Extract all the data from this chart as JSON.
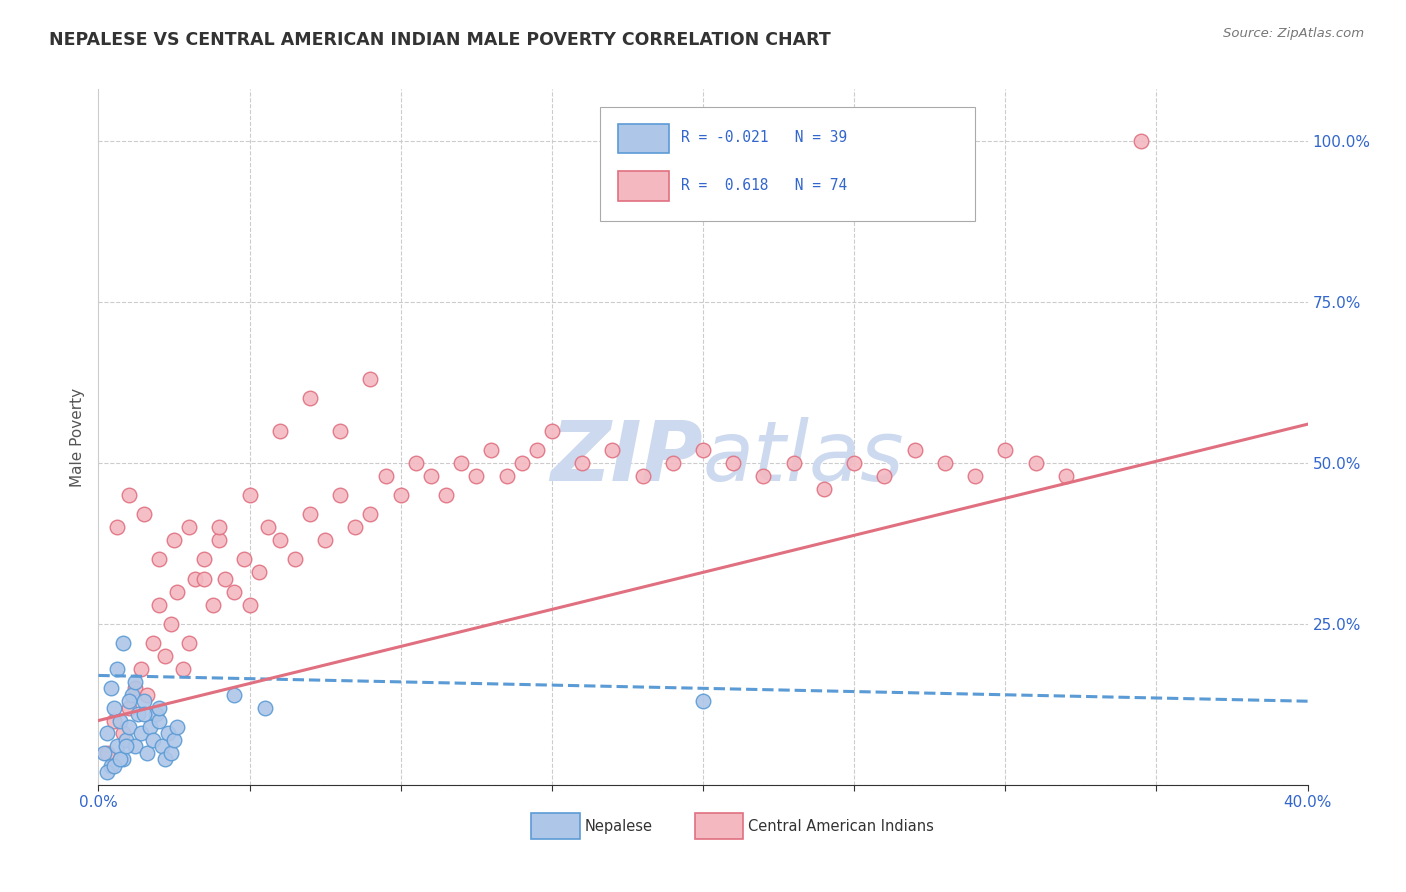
{
  "title": "NEPALESE VS CENTRAL AMERICAN INDIAN MALE POVERTY CORRELATION CHART",
  "source": "Source: ZipAtlas.com",
  "ylabel": "Male Poverty",
  "ytick_labels": [
    "",
    "25.0%",
    "50.0%",
    "75.0%",
    "100.0%"
  ],
  "ytick_values": [
    0,
    25,
    50,
    75,
    100
  ],
  "xlim": [
    0,
    40
  ],
  "ylim": [
    0,
    108
  ],
  "r_nepalese": -0.021,
  "n_nepalese": 39,
  "r_central": 0.618,
  "n_central": 74,
  "legend_label_1": "Nepalese",
  "legend_label_2": "Central American Indians",
  "color_nepalese_fill": "#aec6e8",
  "color_nepalese_edge": "#5b9bd5",
  "color_central_fill": "#f4b8c1",
  "color_central_edge": "#e07080",
  "trend_nepalese_color": "#5b9bd5",
  "trend_central_color": "#e07080",
  "background_color": "#ffffff",
  "watermark_color": "#ccd9ee",
  "nepalese_x": [
    0.2,
    0.3,
    0.4,
    0.5,
    0.6,
    0.7,
    0.8,
    0.9,
    1.0,
    1.1,
    1.2,
    1.3,
    1.4,
    1.5,
    1.6,
    1.7,
    1.8,
    1.9,
    2.0,
    2.1,
    2.2,
    2.3,
    2.4,
    2.5,
    2.6,
    0.4,
    0.6,
    0.8,
    1.0,
    1.2,
    1.5,
    2.0,
    4.5,
    5.5,
    0.3,
    0.5,
    0.7,
    0.9,
    20.0
  ],
  "nepalese_y": [
    5,
    8,
    3,
    12,
    6,
    10,
    4,
    7,
    9,
    14,
    6,
    11,
    8,
    13,
    5,
    9,
    7,
    11,
    10,
    6,
    4,
    8,
    5,
    7,
    9,
    15,
    18,
    22,
    13,
    16,
    11,
    12,
    14,
    12,
    2,
    3,
    4,
    6,
    13
  ],
  "central_x": [
    0.3,
    0.5,
    0.8,
    1.0,
    1.2,
    1.4,
    1.6,
    1.8,
    2.0,
    2.2,
    2.4,
    2.6,
    2.8,
    3.0,
    3.2,
    3.5,
    3.8,
    4.0,
    4.2,
    4.5,
    4.8,
    5.0,
    5.3,
    5.6,
    6.0,
    6.5,
    7.0,
    7.5,
    8.0,
    8.5,
    9.0,
    9.5,
    10.0,
    10.5,
    11.0,
    11.5,
    12.0,
    12.5,
    13.0,
    13.5,
    14.0,
    14.5,
    15.0,
    16.0,
    17.0,
    18.0,
    19.0,
    20.0,
    21.0,
    22.0,
    23.0,
    24.0,
    25.0,
    26.0,
    27.0,
    28.0,
    29.0,
    30.0,
    31.0,
    32.0,
    0.6,
    1.0,
    1.5,
    2.0,
    2.5,
    3.0,
    3.5,
    4.0,
    5.0,
    6.0,
    7.0,
    8.0,
    9.0,
    34.5
  ],
  "central_y": [
    5,
    10,
    8,
    12,
    15,
    18,
    14,
    22,
    28,
    20,
    25,
    30,
    18,
    22,
    32,
    35,
    28,
    38,
    32,
    30,
    35,
    28,
    33,
    40,
    38,
    35,
    42,
    38,
    45,
    40,
    42,
    48,
    45,
    50,
    48,
    45,
    50,
    48,
    52,
    48,
    50,
    52,
    55,
    50,
    52,
    48,
    50,
    52,
    50,
    48,
    50,
    46,
    50,
    48,
    52,
    50,
    48,
    52,
    50,
    48,
    40,
    45,
    42,
    35,
    38,
    40,
    32,
    40,
    45,
    55,
    60,
    55,
    63,
    100
  ],
  "trend_nepalese_x0": 0,
  "trend_nepalese_x1": 40,
  "trend_nepalese_y0": 17,
  "trend_nepalese_y1": 13,
  "trend_central_x0": 0,
  "trend_central_x1": 40,
  "trend_central_y0": 10,
  "trend_central_y1": 56
}
